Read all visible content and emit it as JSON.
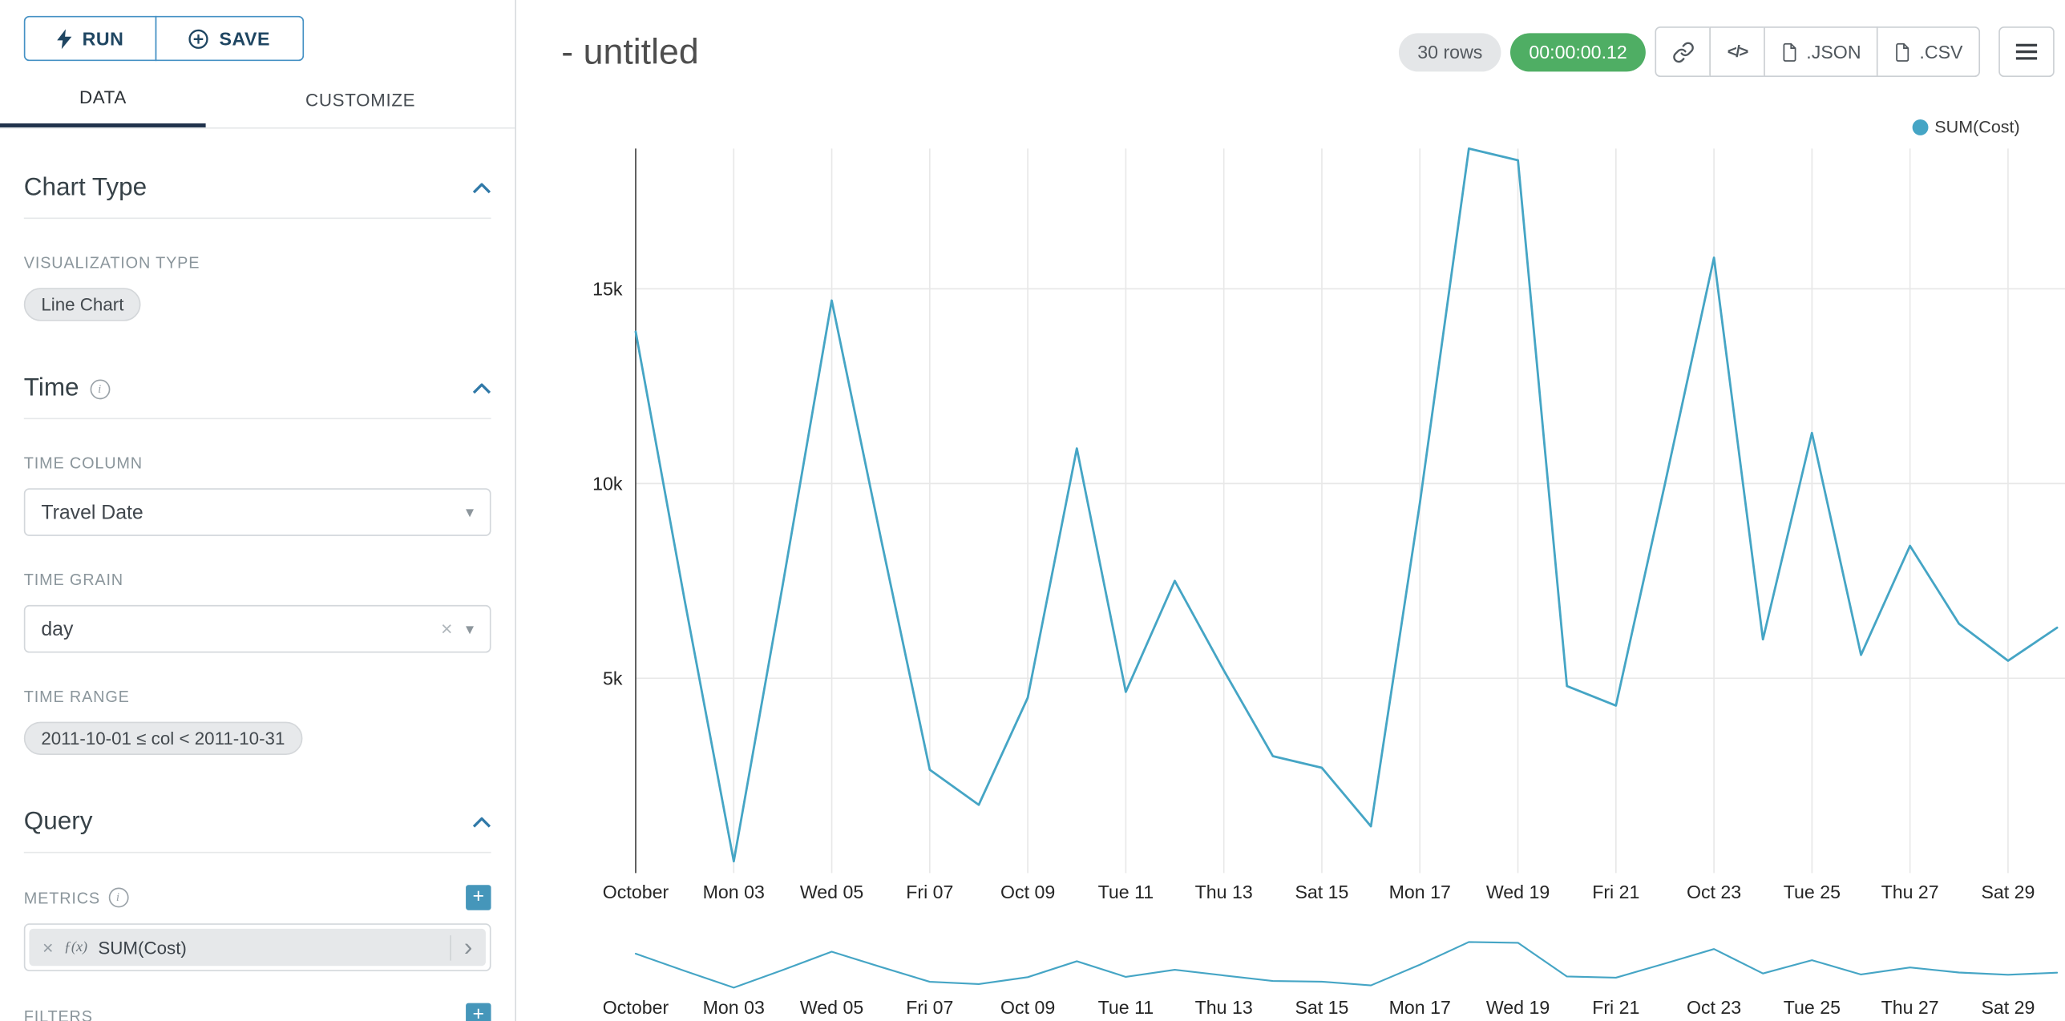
{
  "colors": {
    "accent_blue": "#4591c4",
    "line_teal": "#45a5c5",
    "timer_green": "#4fae64",
    "tab_underline": "#20324c",
    "plus_button": "#4596ba"
  },
  "icons": {
    "run": "lightning-icon",
    "save": "plus-circle-icon",
    "section_collapse": "chevron-up-icon",
    "select_caret": "▾",
    "clear": "×",
    "metric_expand": "›",
    "share": "link-icon",
    "embed_code": "</>",
    "export_file": "file-icon",
    "menu": "menu-icon",
    "info": "i",
    "plus": "+"
  },
  "sidebar": {
    "run_label": "RUN",
    "save_label": "SAVE",
    "tabs": [
      {
        "label": "DATA"
      },
      {
        "label": "CUSTOMIZE"
      }
    ],
    "sections": {
      "chart_type": {
        "title": "Chart Type",
        "viz_type_label": "VISUALIZATION TYPE",
        "viz_type_value": "Line Chart"
      },
      "time": {
        "title": "Time",
        "time_column_label": "TIME COLUMN",
        "time_column_value": "Travel Date",
        "time_grain_label": "TIME GRAIN",
        "time_grain_value": "day",
        "time_range_label": "TIME RANGE",
        "time_range_value": "2011-10-01 ≤ col < 2011-10-31"
      },
      "query": {
        "title": "Query",
        "metrics_label": "METRICS",
        "metric_fx": "ƒ(x)",
        "metric_value": "SUM(Cost)",
        "filters_label": "FILTERS"
      }
    }
  },
  "header": {
    "title": "- untitled",
    "rows_badge": "30 rows",
    "timer_badge": "00:00:00.12",
    "json_label": ".JSON",
    "csv_label": ".CSV"
  },
  "chart_data": {
    "type": "line",
    "title": "",
    "xlabel": "",
    "ylabel": "",
    "grid": true,
    "legend_position": "top-right",
    "y_max": 18600,
    "y_ticks": [
      {
        "value": 5000,
        "label": "5k"
      },
      {
        "value": 10000,
        "label": "10k"
      },
      {
        "value": 15000,
        "label": "15k"
      }
    ],
    "tick_every": 2,
    "x_tick_labels": [
      "October",
      "Mon 03",
      "Wed 05",
      "Fri 07",
      "Oct 09",
      "Tue 11",
      "Thu 13",
      "Sat 15",
      "Mon 17",
      "Wed 19",
      "Fri 21",
      "Oct 23",
      "Tue 25",
      "Thu 27",
      "Sat 29"
    ],
    "x": [
      "2011-10-01",
      "2011-10-02",
      "2011-10-03",
      "2011-10-04",
      "2011-10-05",
      "2011-10-06",
      "2011-10-07",
      "2011-10-08",
      "2011-10-09",
      "2011-10-10",
      "2011-10-11",
      "2011-10-12",
      "2011-10-13",
      "2011-10-14",
      "2011-10-15",
      "2011-10-16",
      "2011-10-17",
      "2011-10-18",
      "2011-10-19",
      "2011-10-20",
      "2011-10-21",
      "2011-10-22",
      "2011-10-23",
      "2011-10-24",
      "2011-10-25",
      "2011-10-26",
      "2011-10-27",
      "2011-10-28",
      "2011-10-29",
      "2011-10-30"
    ],
    "series": [
      {
        "name": "SUM(Cost)",
        "color": "#45a5c5",
        "values": [
          13900,
          7000,
          300,
          7400,
          14700,
          8600,
          2650,
          1750,
          4500,
          10900,
          4650,
          7500,
          5200,
          3000,
          2700,
          1200,
          9500,
          18600,
          18300,
          4800,
          4300,
          10000,
          15800,
          6000,
          11300,
          5600,
          8400,
          6400,
          5450,
          6300
        ]
      }
    ],
    "has_context_brush": true
  }
}
